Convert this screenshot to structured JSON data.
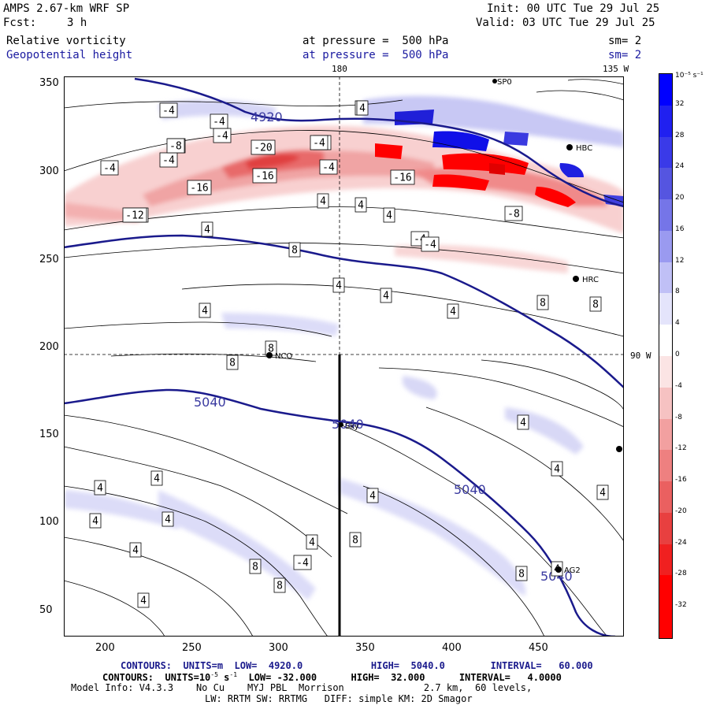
{
  "header": {
    "model": "AMPS 2.67-km WRF SP",
    "fcst_label": "Fcst:",
    "fcst_value": "3 h",
    "init": "Init: 00 UTC Tue 29 Jul 25",
    "valid": "Valid: 03 UTC Tue 29 Jul 25",
    "field1_name": "Relative vorticity",
    "field1_level": "at pressure =  500 hPa",
    "field1_sm": "sm= 2",
    "field2_name": "Geopotential height",
    "field2_level": "at pressure =  500 hPa",
    "field2_sm": "sm= 2"
  },
  "map": {
    "meridian_labels": {
      "top_180": "180",
      "top_135w": "135 W",
      "right_90w": "90 W"
    },
    "x_ticks": [
      "200",
      "250",
      "300",
      "350",
      "400",
      "450"
    ],
    "y_ticks": [
      "350",
      "300",
      "250",
      "200",
      "150",
      "100",
      "50"
    ],
    "stations": [
      {
        "id": "NCO",
        "label": "NCO"
      },
      {
        "id": "HRC",
        "label": "HRC"
      },
      {
        "id": "HBC",
        "label": "HBC"
      },
      {
        "id": "SPO",
        "label": "SP0"
      },
      {
        "id": "AGS",
        "label": "AG2"
      },
      {
        "id": "SKY",
        "label": "Sky"
      }
    ],
    "height_contours": {
      "color": "#1a1a8c",
      "labels": [
        "4920",
        "5040",
        "5040",
        "5040",
        "5040"
      ]
    },
    "vorticity_labels": [
      "-12",
      "-4",
      "4",
      "-4",
      "-8",
      "-20",
      "-8",
      "-16",
      "-16",
      "-4",
      "-16",
      "-8",
      "-4",
      "-12",
      "-4",
      "4",
      "-4",
      "-4",
      "-4",
      "-8",
      "-4",
      "4",
      "4",
      "4",
      "4",
      "8",
      "8",
      "8",
      "4",
      "4",
      "4",
      "4",
      "8",
      "8",
      "4",
      "4",
      "4",
      "4",
      "-4",
      "4",
      "8",
      "8",
      "4",
      "4",
      "4",
      "8",
      "8",
      "4",
      "4",
      "4",
      "4"
    ]
  },
  "colorbar": {
    "unit": "10⁻⁵ s⁻¹",
    "labels": [
      "32",
      "28",
      "24",
      "20",
      "16",
      "12",
      "8",
      "4",
      "0",
      "-4",
      "-8",
      "-12",
      "-16",
      "-20",
      "-24",
      "-28",
      "-32"
    ],
    "colors": [
      "#0000ff",
      "#2020f0",
      "#3a3ae8",
      "#5555e0",
      "#7575e8",
      "#9a9af0",
      "#c0c0f6",
      "#e4e4fb",
      "#ffffff",
      "#fbe4e4",
      "#f6c2c2",
      "#f2a0a0",
      "#ee8080",
      "#ea6060",
      "#e84040",
      "#f02020",
      "#ff0000"
    ]
  },
  "footer": {
    "line1_a": "CONTOURS:  UNITS=m  LOW=  4920.0",
    "line1_b": "HIGH=  5040.0",
    "line1_c": "INTERVAL=   60.000",
    "line2_a": "CONTOURS:  UNITS=10",
    "line2_sup": "-5",
    "line2_b": " s",
    "line2_sup2": "-1",
    "line2_c": "  LOW= -32.000",
    "line2_d": "HIGH=  32.000",
    "line2_e": "INTERVAL=   4.0000",
    "line3": "Model Info: V4.3.3    No Cu    MYJ PBL  Morrison              2.7 km,  60 levels,",
    "line4": "LW: RRTM SW: RRTMG   DIFF: simple KM: 2D Smagor"
  }
}
